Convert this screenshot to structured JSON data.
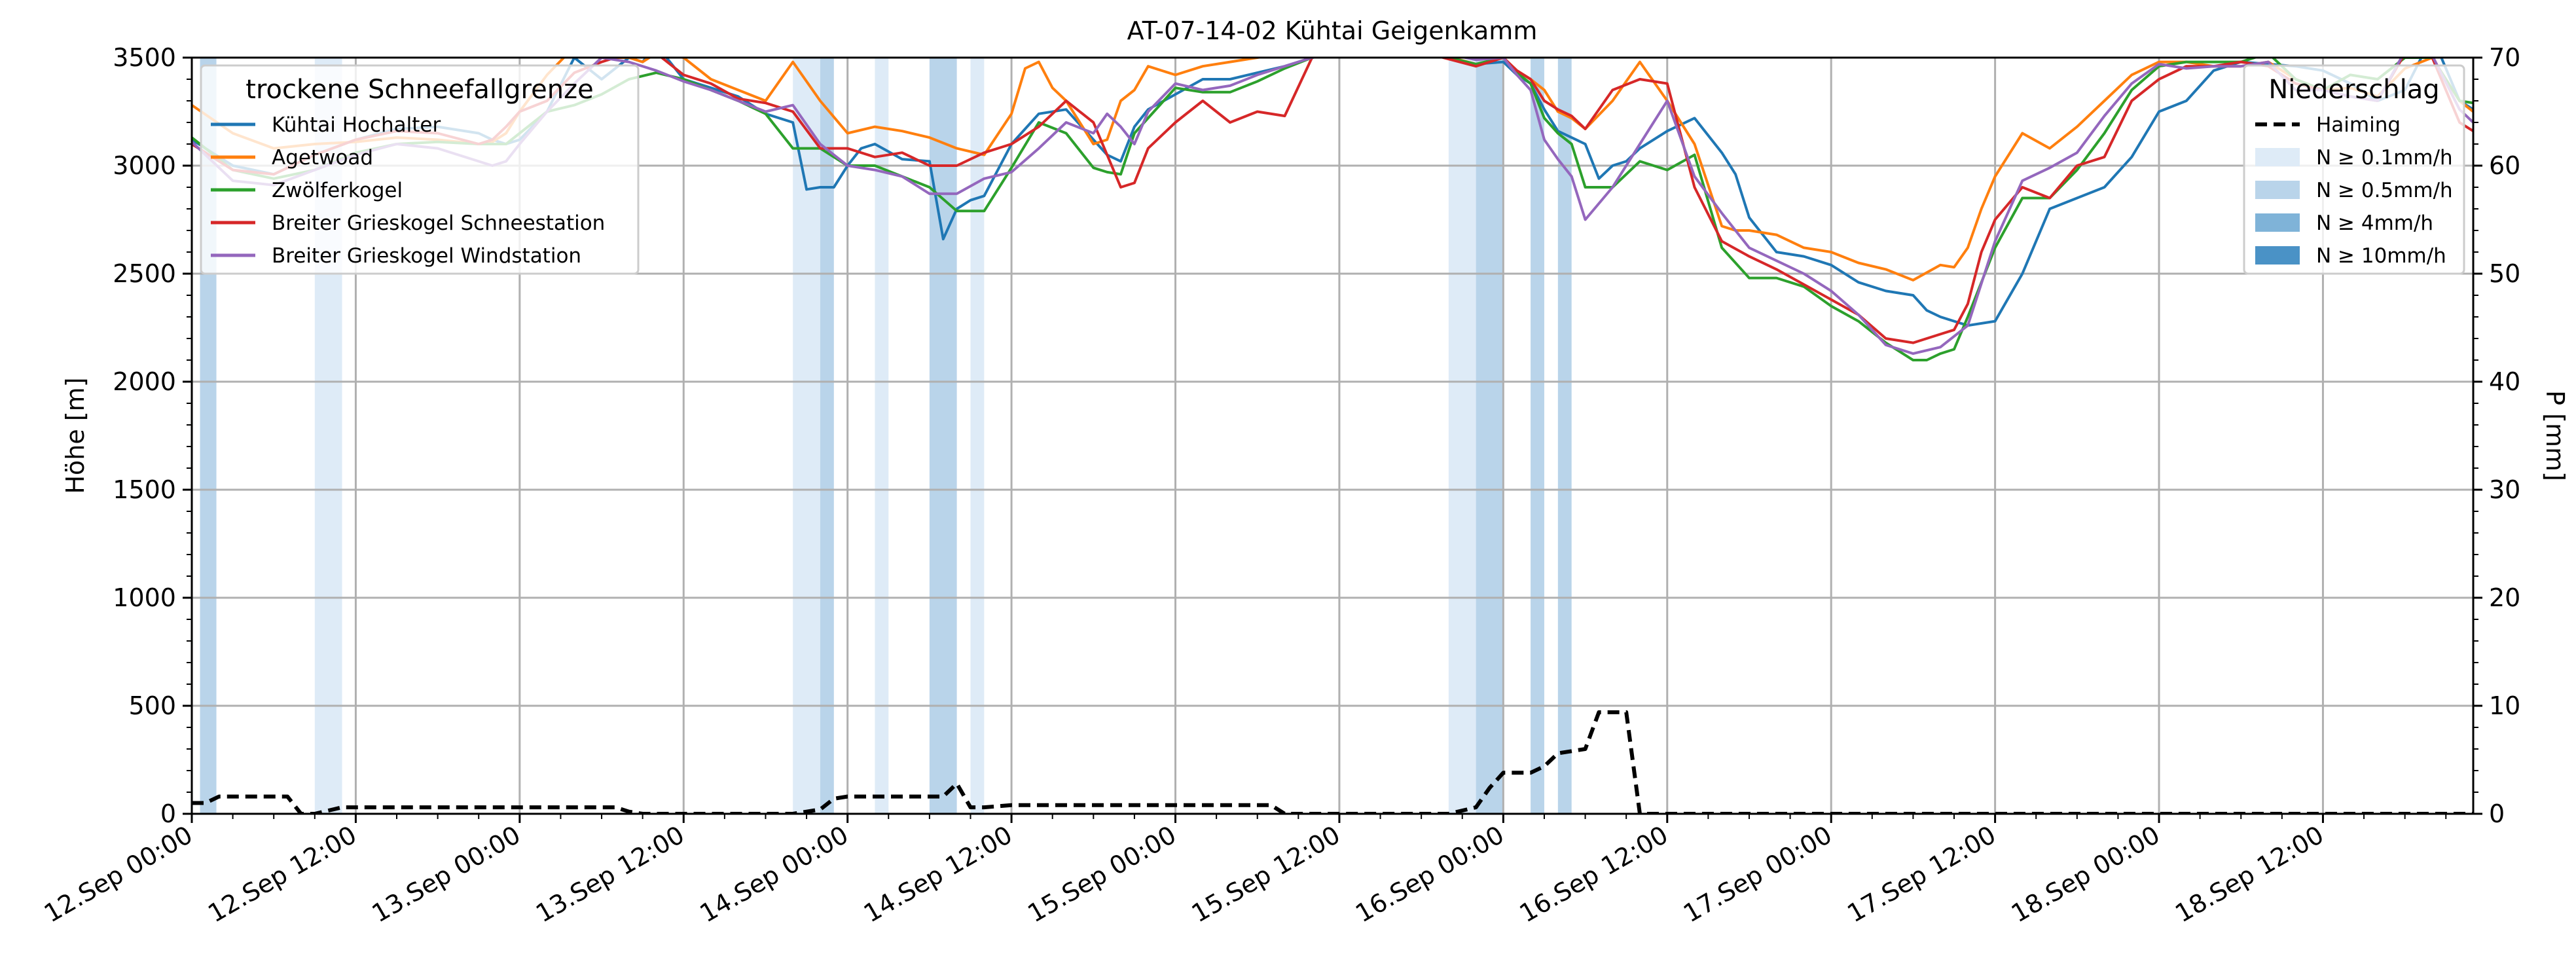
{
  "chart_data": {
    "type": "line",
    "title": "AT-07-14-02 Kühtai Geigenkamm",
    "ylabel": "Höhe [m]",
    "ylabel_right": "P [mm]",
    "ylim": [
      0,
      3500
    ],
    "ylim_right": [
      0,
      70
    ],
    "yticks": [
      "0",
      "500",
      "1000",
      "1500",
      "2000",
      "2500",
      "3000",
      "3500"
    ],
    "yticks_right": [
      "0",
      "10",
      "20",
      "30",
      "40",
      "50",
      "60",
      "70"
    ],
    "xlim_hours": [
      0,
      167
    ],
    "xticks": [
      "12.Sep 00:00",
      "12.Sep 12:00",
      "13.Sep 00:00",
      "13.Sep 12:00",
      "14.Sep 00:00",
      "14.Sep 12:00",
      "15.Sep 00:00",
      "15.Sep 12:00",
      "16.Sep 00:00",
      "16.Sep 12:00",
      "17.Sep 00:00",
      "17.Sep 12:00",
      "18.Sep 00:00",
      "18.Sep 12:00"
    ],
    "grid": true,
    "legend_snow": {
      "title": "trockene Schneefallgrenze",
      "placement": "top-left",
      "entries": [
        "Kühtai Hochalter",
        "Agetwoad",
        "Zwölferkogel",
        "Breiter Grieskogel Schneestation",
        "Breiter Grieskogel Windstation"
      ]
    },
    "legend_precip": {
      "title": "Niederschlag",
      "placement": "top-right",
      "entries": [
        "Haiming",
        "N ≥ 0.1mm/h",
        "N ≥ 0.5mm/h",
        "N ≥ 4mm/h",
        "N ≥ 10mm/h"
      ]
    },
    "colors": {
      "Kühtai Hochalter": "#1f77b4",
      "Agetwoad": "#ff7f0e",
      "Zwölferkogel": "#2ca02c",
      "Breiter Grieskogel Schneestation": "#d62728",
      "Breiter Grieskogel Windstation": "#9467bd",
      "Haiming": "#000000",
      "N ≥ 0.1mm/h": "#deebf7",
      "N ≥ 0.5mm/h": "#b9d4ea",
      "N ≥ 4mm/h": "#7fb3d8",
      "N ≥ 10mm/h": "#4a92c6"
    },
    "precip_bands": [
      {
        "start": 0.6,
        "end": 1.8,
        "level": 1
      },
      {
        "start": 9.0,
        "end": 11.0,
        "level": 0
      },
      {
        "start": 44.0,
        "end": 46.0,
        "level": 0
      },
      {
        "start": 46.0,
        "end": 47.0,
        "level": 1
      },
      {
        "start": 50.0,
        "end": 51.0,
        "level": 0
      },
      {
        "start": 54.0,
        "end": 56.0,
        "level": 1
      },
      {
        "start": 57.0,
        "end": 58.0,
        "level": 0
      },
      {
        "start": 92.0,
        "end": 94.0,
        "level": 0
      },
      {
        "start": 94.0,
        "end": 96.0,
        "level": 1
      },
      {
        "start": 98.0,
        "end": 99.0,
        "level": 1
      },
      {
        "start": 100.0,
        "end": 101.0,
        "level": 1
      }
    ],
    "series": [
      {
        "name": "Kühtai Hochalter",
        "x": [
          0,
          3,
          6,
          9,
          12,
          15,
          18,
          21,
          22,
          23,
          24,
          26,
          28,
          30,
          32,
          33,
          34,
          36,
          38,
          40,
          42,
          44,
          45,
          46,
          47,
          48,
          49,
          50,
          52,
          54,
          55,
          56,
          57,
          58,
          60,
          62,
          64,
          66,
          67,
          68,
          69,
          70,
          72,
          74,
          76,
          78,
          80,
          82,
          84,
          86,
          88,
          94,
          96,
          97,
          98,
          99,
          100,
          101,
          102,
          103,
          104,
          105,
          106,
          108,
          110,
          112,
          113,
          114,
          116,
          118,
          120,
          122,
          124,
          126,
          127,
          128,
          130,
          132,
          134,
          136,
          138,
          140,
          142,
          144,
          146,
          148,
          150,
          152,
          154,
          156,
          158,
          160,
          162,
          164,
          166,
          167
        ],
        "values": [
          3120,
          3000,
          2960,
          3050,
          3120,
          3170,
          3180,
          3150,
          3120,
          3100,
          3120,
          3250,
          3500,
          3400,
          3500,
          3480,
          3560,
          3400,
          3360,
          3320,
          3240,
          3200,
          2890,
          2900,
          2900,
          3000,
          3080,
          3100,
          3030,
          3020,
          2660,
          2800,
          2840,
          2860,
          3100,
          3240,
          3260,
          3120,
          3050,
          3020,
          3180,
          3260,
          3330,
          3400,
          3400,
          3430,
          3460,
          3500,
          3520,
          3540,
          3560,
          3470,
          3480,
          3420,
          3380,
          3260,
          3160,
          3130,
          3100,
          2940,
          3000,
          3020,
          3080,
          3160,
          3220,
          3060,
          2960,
          2760,
          2600,
          2580,
          2540,
          2460,
          2420,
          2400,
          2330,
          2300,
          2260,
          2280,
          2500,
          2800,
          2850,
          2900,
          3040,
          3250,
          3300,
          3440,
          3480,
          3470,
          3460,
          3440,
          3380,
          3300,
          3350,
          3600,
          3300,
          3260
        ]
      },
      {
        "name": "Agetwoad",
        "x": [
          0,
          3,
          6,
          9,
          12,
          15,
          18,
          21,
          22,
          23,
          24,
          26,
          28,
          30,
          32,
          33,
          34,
          36,
          38,
          40,
          42,
          44,
          46,
          48,
          50,
          52,
          54,
          56,
          58,
          60,
          61,
          62,
          63,
          64,
          66,
          67,
          68,
          69,
          70,
          72,
          74,
          76,
          78,
          80,
          82,
          84,
          86,
          88,
          94,
          96,
          97,
          98,
          99,
          100,
          101,
          102,
          104,
          106,
          108,
          110,
          112,
          113,
          114,
          116,
          118,
          120,
          122,
          124,
          126,
          128,
          129,
          130,
          131,
          132,
          134,
          136,
          138,
          140,
          142,
          144,
          146,
          148,
          150,
          152,
          154,
          156,
          158,
          160,
          162,
          164,
          166,
          167
        ],
        "values": [
          3280,
          3150,
          3080,
          3100,
          3110,
          3130,
          3120,
          3100,
          3110,
          3150,
          3250,
          3420,
          3550,
          3500,
          3500,
          3480,
          3520,
          3500,
          3400,
          3350,
          3300,
          3480,
          3300,
          3150,
          3180,
          3160,
          3130,
          3080,
          3050,
          3240,
          3450,
          3480,
          3360,
          3300,
          3100,
          3120,
          3300,
          3350,
          3460,
          3420,
          3460,
          3480,
          3500,
          3520,
          3550,
          3560,
          3560,
          3570,
          3470,
          3500,
          3440,
          3400,
          3350,
          3250,
          3220,
          3170,
          3300,
          3480,
          3300,
          3100,
          2720,
          2700,
          2700,
          2680,
          2620,
          2600,
          2550,
          2520,
          2470,
          2540,
          2530,
          2620,
          2800,
          2950,
          3150,
          3080,
          3180,
          3300,
          3420,
          3480,
          3480,
          3460,
          3460,
          3480,
          3400,
          3350,
          3360,
          3320,
          3450,
          3500,
          3300,
          3250
        ]
      },
      {
        "name": "Zwölferkogel",
        "x": [
          0,
          3,
          6,
          9,
          12,
          15,
          18,
          21,
          22,
          23,
          24,
          26,
          28,
          30,
          32,
          34,
          36,
          38,
          40,
          42,
          44,
          46,
          48,
          50,
          52,
          54,
          56,
          58,
          60,
          62,
          64,
          66,
          67,
          68,
          69,
          70,
          72,
          74,
          76,
          78,
          80,
          82,
          84,
          86,
          88,
          94,
          96,
          97,
          98,
          99,
          100,
          101,
          102,
          104,
          106,
          108,
          110,
          112,
          114,
          116,
          118,
          120,
          122,
          124,
          126,
          127,
          128,
          129,
          130,
          132,
          134,
          136,
          138,
          140,
          142,
          144,
          146,
          148,
          150,
          152,
          154,
          156,
          158,
          160,
          162,
          164,
          166,
          167
        ],
        "values": [
          3130,
          2980,
          2940,
          2980,
          3060,
          3100,
          3110,
          3100,
          3100,
          3100,
          3150,
          3250,
          3280,
          3330,
          3400,
          3430,
          3400,
          3350,
          3300,
          3240,
          3080,
          3080,
          3000,
          3000,
          2950,
          2900,
          2790,
          2790,
          2990,
          3200,
          3150,
          2990,
          2970,
          2960,
          3150,
          3220,
          3360,
          3340,
          3340,
          3390,
          3450,
          3500,
          3550,
          3560,
          3560,
          3470,
          3500,
          3430,
          3380,
          3220,
          3150,
          3100,
          2900,
          2900,
          3020,
          2980,
          3050,
          2620,
          2480,
          2480,
          2440,
          2350,
          2280,
          2180,
          2100,
          2100,
          2130,
          2150,
          2300,
          2620,
          2850,
          2850,
          2980,
          3150,
          3350,
          3460,
          3480,
          3480,
          3480,
          3520,
          3400,
          3350,
          3420,
          3400,
          3500,
          3500,
          3300,
          3290
        ]
      },
      {
        "name": "Breiter Grieskogel Schneestation",
        "x": [
          0,
          3,
          6,
          9,
          12,
          15,
          18,
          21,
          22,
          23,
          24,
          26,
          28,
          30,
          32,
          34,
          36,
          38,
          40,
          42,
          44,
          46,
          48,
          50,
          52,
          54,
          56,
          58,
          60,
          62,
          64,
          66,
          67,
          68,
          69,
          70,
          72,
          74,
          76,
          78,
          80,
          82,
          84,
          86,
          88,
          94,
          96,
          97,
          98,
          99,
          100,
          101,
          102,
          104,
          106,
          108,
          110,
          112,
          114,
          116,
          118,
          120,
          122,
          124,
          126,
          128,
          129,
          130,
          131,
          132,
          134,
          136,
          138,
          140,
          142,
          144,
          146,
          148,
          150,
          152,
          154,
          156,
          158,
          160,
          162,
          164,
          166,
          167
        ],
        "values": [
          3100,
          2980,
          2960,
          3050,
          3120,
          3160,
          3150,
          3100,
          3120,
          3180,
          3250,
          3300,
          3430,
          3480,
          3520,
          3520,
          3420,
          3380,
          3310,
          3290,
          3250,
          3080,
          3080,
          3040,
          3060,
          3000,
          3000,
          3060,
          3100,
          3180,
          3300,
          3200,
          3050,
          2900,
          2920,
          3080,
          3200,
          3300,
          3200,
          3250,
          3230,
          3500,
          3540,
          3560,
          3560,
          3460,
          3500,
          3440,
          3400,
          3300,
          3260,
          3230,
          3170,
          3350,
          3400,
          3380,
          2900,
          2650,
          2580,
          2520,
          2450,
          2380,
          2310,
          2200,
          2180,
          2220,
          2240,
          2360,
          2600,
          2750,
          2900,
          2850,
          3000,
          3040,
          3300,
          3400,
          3460,
          3460,
          3480,
          3460,
          3380,
          3350,
          3320,
          3300,
          3520,
          3500,
          3200,
          3160
        ]
      },
      {
        "name": "Breiter Grieskogel Windstation",
        "x": [
          0,
          3,
          6,
          9,
          12,
          15,
          18,
          21,
          22,
          23,
          24,
          26,
          28,
          30,
          32,
          34,
          36,
          38,
          40,
          42,
          44,
          46,
          48,
          50,
          52,
          54,
          56,
          58,
          60,
          62,
          64,
          66,
          67,
          68,
          69,
          70,
          72,
          74,
          76,
          78,
          80,
          82,
          84,
          86,
          88,
          94,
          96,
          97,
          98,
          99,
          100,
          101,
          102,
          104,
          106,
          108,
          110,
          112,
          114,
          116,
          118,
          120,
          122,
          124,
          126,
          128,
          130,
          132,
          134,
          136,
          138,
          140,
          142,
          144,
          146,
          148,
          150,
          152,
          154,
          156,
          158,
          160,
          162,
          164,
          166,
          167
        ],
        "values": [
          3110,
          2930,
          2910,
          2980,
          3050,
          3100,
          3080,
          3020,
          3000,
          3020,
          3100,
          3250,
          3380,
          3500,
          3480,
          3440,
          3390,
          3350,
          3300,
          3250,
          3280,
          3100,
          3000,
          2980,
          2950,
          2870,
          2870,
          2940,
          2970,
          3080,
          3200,
          3150,
          3240,
          3180,
          3100,
          3250,
          3380,
          3350,
          3370,
          3420,
          3460,
          3500,
          3520,
          3540,
          3570,
          3490,
          3500,
          3420,
          3350,
          3120,
          3030,
          2950,
          2750,
          2900,
          3100,
          3300,
          2950,
          2780,
          2620,
          2560,
          2500,
          2420,
          2310,
          2170,
          2130,
          2160,
          2260,
          2650,
          2930,
          2990,
          3060,
          3230,
          3380,
          3470,
          3450,
          3460,
          3460,
          3480,
          3350,
          3350,
          3320,
          3300,
          3530,
          3510,
          3260,
          3200
        ]
      },
      {
        "name": "Haiming",
        "axis": "right",
        "dashed": true,
        "x": [
          0,
          1,
          2,
          6,
          7,
          8,
          9,
          10,
          11,
          12,
          18,
          24,
          30,
          31,
          32,
          33,
          40,
          44,
          45,
          46,
          47,
          48,
          49,
          50,
          52,
          53,
          54,
          55,
          56,
          57,
          58,
          60,
          62,
          64,
          66,
          70,
          76,
          78,
          79,
          80,
          86,
          88,
          90,
          92,
          94,
          95,
          96,
          97,
          98,
          99,
          100,
          101,
          102,
          103,
          104,
          105,
          106,
          110,
          120,
          130,
          140,
          150,
          160,
          167
        ],
        "values": [
          1,
          1,
          1.6,
          1.6,
          1.6,
          0,
          0,
          0.3,
          0.6,
          0.6,
          0.6,
          0.6,
          0.6,
          0.6,
          0.2,
          0,
          0,
          0,
          0.2,
          0.4,
          1.4,
          1.6,
          1.6,
          1.6,
          1.6,
          1.6,
          1.6,
          1.6,
          2.8,
          0.6,
          0.6,
          0.8,
          0.8,
          0.8,
          0.8,
          0.8,
          0.8,
          0.8,
          0.8,
          0,
          0,
          0,
          0,
          0,
          0.6,
          2.4,
          3.8,
          3.8,
          3.8,
          4.4,
          5.6,
          5.8,
          6,
          9.4,
          9.4,
          9.4,
          0,
          0,
          0,
          0,
          0,
          0,
          0,
          0
        ]
      }
    ]
  }
}
